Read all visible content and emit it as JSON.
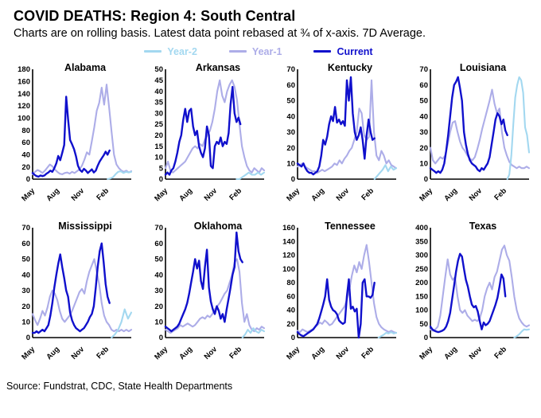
{
  "header": {
    "title": "COVID DEATHS: Region 4: South Central",
    "subtitle": "Charts are on rolling basis. Latest data point rebased at ¾ of x-axis. 7D Average."
  },
  "colors": {
    "year2": "#A3D8F0",
    "year1": "#ADADE8",
    "current": "#1010CC"
  },
  "legend": {
    "items": [
      {
        "label": "Year-2",
        "color": "#A3D8F0"
      },
      {
        "label": "Year-1",
        "color": "#ADADE8"
      },
      {
        "label": "Current",
        "color": "#1010CC"
      }
    ]
  },
  "footer": {
    "source": "Source: Fundstrat, CDC, State Health Departments"
  },
  "chart_data": [
    {
      "type": "line",
      "id": "alabama",
      "title": "Alabama",
      "ylim": [
        0,
        180
      ],
      "ystep": 20,
      "x_tick_labels": [
        "May",
        "Aug",
        "Nov",
        "Feb"
      ],
      "x_tick_pos": [
        0,
        0.25,
        0.5,
        0.75
      ],
      "series": [
        {
          "name": "Year-1",
          "color_key": "year1",
          "x_range": [
            0,
            1
          ],
          "y": [
            8,
            12,
            15,
            13,
            10,
            14,
            19,
            24,
            21,
            16,
            12,
            9,
            8,
            10,
            11,
            9,
            12,
            10,
            13,
            16,
            22,
            32,
            44,
            40,
            62,
            85,
            112,
            125,
            150,
            122,
            155,
            118,
            78,
            40,
            24,
            18,
            14,
            12,
            14,
            11,
            13
          ]
        },
        {
          "name": "Year-2",
          "color_key": "year2",
          "x_range": [
            0.76,
            1
          ],
          "y": [
            0,
            1,
            3,
            8,
            12,
            13,
            10,
            12,
            11,
            12
          ]
        },
        {
          "name": "Current",
          "color_key": "current",
          "x_range": [
            0,
            0.78
          ],
          "y": [
            10,
            7,
            5,
            4,
            6,
            5,
            6,
            9,
            11,
            14,
            12,
            18,
            26,
            38,
            31,
            43,
            56,
            135,
            98,
            64,
            57,
            49,
            37,
            22,
            15,
            12,
            17,
            14,
            10,
            13,
            16,
            11,
            14,
            22,
            29,
            34,
            39,
            45,
            40,
            47
          ]
        }
      ]
    },
    {
      "type": "line",
      "id": "arkansas",
      "title": "Arkansas",
      "ylim": [
        0,
        50
      ],
      "ystep": 5,
      "x_tick_labels": [
        "May",
        "Aug",
        "Nov",
        "Feb"
      ],
      "x_tick_pos": [
        0,
        0.25,
        0.5,
        0.75
      ],
      "series": [
        {
          "name": "Year-1",
          "color_key": "year1",
          "x_range": [
            0,
            1
          ],
          "y": [
            5,
            8,
            4,
            3,
            4,
            5,
            6,
            7,
            8,
            10,
            12,
            14,
            15,
            14,
            16,
            15,
            18,
            20,
            22,
            26,
            32,
            40,
            45,
            38,
            35,
            40,
            43,
            45,
            42,
            36,
            25,
            15,
            10,
            6,
            4,
            3,
            5,
            4,
            3,
            5,
            4
          ]
        },
        {
          "name": "Year-2",
          "color_key": "year2",
          "x_range": [
            0.72,
            1
          ],
          "y": [
            0,
            0,
            1,
            2,
            3,
            2,
            2,
            3,
            2,
            3
          ]
        },
        {
          "name": "Current",
          "color_key": "current",
          "x_range": [
            0,
            0.76
          ],
          "y": [
            2,
            3,
            2,
            4,
            5,
            8,
            12,
            17,
            20,
            27,
            32,
            26,
            31,
            32,
            24,
            20,
            22,
            15,
            12,
            10,
            14,
            24,
            20,
            6,
            5,
            15,
            17,
            16,
            19,
            15,
            17,
            16,
            21,
            34,
            42,
            30,
            26,
            28,
            25
          ]
        }
      ]
    },
    {
      "type": "line",
      "id": "kentucky",
      "title": "Kentucky",
      "ylim": [
        0,
        70
      ],
      "ystep": 10,
      "x_tick_labels": [
        "May",
        "Aug",
        "Nov",
        "Feb"
      ],
      "x_tick_pos": [
        0,
        0.25,
        0.5,
        0.75
      ],
      "series": [
        {
          "name": "Year-1",
          "color_key": "year1",
          "x_range": [
            0,
            1
          ],
          "y": [
            8,
            9,
            10,
            8,
            7,
            6,
            5,
            5,
            4,
            5,
            6,
            5,
            6,
            7,
            8,
            10,
            9,
            12,
            10,
            13,
            15,
            18,
            20,
            25,
            30,
            45,
            42,
            28,
            25,
            27,
            63,
            30,
            15,
            12,
            18,
            15,
            10,
            12,
            9,
            8,
            7
          ]
        },
        {
          "name": "Year-2",
          "color_key": "year2",
          "x_range": [
            0.78,
            1
          ],
          "y": [
            0,
            2,
            4,
            6,
            9,
            5,
            8,
            6,
            7
          ]
        },
        {
          "name": "Current",
          "color_key": "current",
          "x_range": [
            0,
            0.78
          ],
          "y": [
            10,
            9,
            8,
            10,
            7,
            5,
            4,
            4,
            3,
            4,
            5,
            8,
            15,
            25,
            22,
            27,
            35,
            40,
            37,
            46,
            36,
            38,
            35,
            37,
            34,
            63,
            50,
            65,
            42,
            30,
            25,
            28,
            33,
            25,
            13,
            28,
            38,
            30,
            25,
            26
          ]
        }
      ]
    },
    {
      "type": "line",
      "id": "louisiana",
      "title": "Louisiana",
      "ylim": [
        0,
        70
      ],
      "ystep": 10,
      "x_tick_labels": [
        "May",
        "Aug",
        "Nov",
        "Feb"
      ],
      "x_tick_pos": [
        0,
        0.25,
        0.5,
        0.75
      ],
      "series": [
        {
          "name": "Year-1",
          "color_key": "year1",
          "x_range": [
            0,
            1
          ],
          "y": [
            20,
            12,
            10,
            12,
            14,
            13,
            15,
            22,
            30,
            36,
            37,
            30,
            24,
            20,
            18,
            15,
            13,
            12,
            14,
            19,
            25,
            32,
            38,
            44,
            50,
            57,
            48,
            42,
            45,
            30,
            20,
            15,
            11,
            9,
            8,
            7,
            8,
            7,
            7,
            8,
            7
          ]
        },
        {
          "name": "Year-2",
          "color_key": "year2",
          "x_range": [
            0.78,
            1
          ],
          "y": [
            0,
            3,
            15,
            35,
            52,
            60,
            65,
            63,
            55,
            33,
            28,
            17
          ]
        },
        {
          "name": "Current",
          "color_key": "current",
          "x_range": [
            0,
            0.78
          ],
          "y": [
            7,
            6,
            5,
            4,
            5,
            4,
            6,
            10,
            18,
            28,
            40,
            52,
            60,
            62,
            65,
            58,
            50,
            30,
            22,
            16,
            12,
            10,
            9,
            8,
            6,
            5,
            7,
            6,
            8,
            10,
            14,
            22,
            30,
            38,
            42,
            40,
            35,
            38,
            31,
            28
          ]
        }
      ]
    },
    {
      "type": "line",
      "id": "mississippi",
      "title": "Mississippi",
      "ylim": [
        0,
        70
      ],
      "ystep": 10,
      "x_tick_labels": [
        "May",
        "Aug",
        "Nov",
        "Feb"
      ],
      "x_tick_pos": [
        0,
        0.25,
        0.5,
        0.75
      ],
      "series": [
        {
          "name": "Year-1",
          "color_key": "year1",
          "x_range": [
            0,
            1
          ],
          "y": [
            15,
            11,
            8,
            12,
            17,
            14,
            19,
            26,
            30,
            28,
            24,
            17,
            12,
            10,
            12,
            14,
            17,
            21,
            25,
            29,
            31,
            28,
            36,
            42,
            46,
            50,
            42,
            34,
            22,
            14,
            10,
            8,
            5,
            4,
            5,
            4,
            5,
            4,
            5,
            4,
            5
          ]
        },
        {
          "name": "Year-2",
          "color_key": "year2",
          "x_range": [
            0.8,
            1
          ],
          "y": [
            0,
            2,
            5,
            10,
            18,
            12,
            16
          ]
        },
        {
          "name": "Current",
          "color_key": "current",
          "x_range": [
            0,
            0.78
          ],
          "y": [
            3,
            3,
            4,
            3,
            4,
            5,
            4,
            6,
            8,
            14,
            22,
            32,
            40,
            47,
            53,
            45,
            38,
            30,
            26,
            16,
            11,
            8,
            6,
            5,
            4,
            5,
            6,
            8,
            10,
            13,
            15,
            20,
            32,
            45,
            55,
            60,
            48,
            34,
            26,
            22
          ]
        }
      ]
    },
    {
      "type": "line",
      "id": "oklahoma",
      "title": "Oklahoma",
      "ylim": [
        0,
        70
      ],
      "ystep": 10,
      "x_tick_labels": [
        "May",
        "Aug",
        "Nov",
        "Feb"
      ],
      "x_tick_pos": [
        0,
        0.25,
        0.5,
        0.75
      ],
      "series": [
        {
          "name": "Year-1",
          "color_key": "year1",
          "x_range": [
            0,
            1
          ],
          "y": [
            5,
            4,
            3,
            4,
            5,
            6,
            8,
            7,
            8,
            9,
            8,
            7,
            8,
            10,
            12,
            13,
            12,
            14,
            13,
            15,
            18,
            20,
            22,
            25,
            28,
            30,
            35,
            40,
            48,
            50,
            42,
            22,
            10,
            15,
            8,
            5,
            4,
            6,
            5,
            7,
            6
          ]
        },
        {
          "name": "Year-2",
          "color_key": "year2",
          "x_range": [
            0.78,
            1
          ],
          "y": [
            0,
            2,
            5,
            3,
            6,
            4,
            3,
            5,
            4
          ]
        },
        {
          "name": "Current",
          "color_key": "current",
          "x_range": [
            0,
            0.78
          ],
          "y": [
            7,
            6,
            5,
            4,
            5,
            6,
            7,
            9,
            12,
            15,
            18,
            22,
            28,
            35,
            42,
            50,
            44,
            49,
            36,
            31,
            45,
            56,
            32,
            23,
            18,
            15,
            20,
            17,
            12,
            15,
            10,
            18,
            25,
            32,
            40,
            45,
            67,
            55,
            50,
            48
          ]
        }
      ]
    },
    {
      "type": "line",
      "id": "tennessee",
      "title": "Tennessee",
      "ylim": [
        0,
        160
      ],
      "ystep": 20,
      "x_tick_labels": [
        "May",
        "Aug",
        "Nov",
        "Feb"
      ],
      "x_tick_pos": [
        0,
        0.25,
        0.5,
        0.75
      ],
      "series": [
        {
          "name": "Year-1",
          "color_key": "year1",
          "x_range": [
            0,
            1
          ],
          "y": [
            10,
            8,
            12,
            10,
            8,
            10,
            12,
            15,
            18,
            22,
            20,
            25,
            22,
            18,
            20,
            25,
            30,
            35,
            40,
            45,
            55,
            70,
            90,
            105,
            95,
            110,
            100,
            120,
            135,
            110,
            80,
            50,
            30,
            20,
            15,
            12,
            10,
            8,
            10,
            8,
            7
          ]
        },
        {
          "name": "Year-2",
          "color_key": "year2",
          "x_range": [
            0.82,
            1
          ],
          "y": [
            0,
            2,
            4,
            7,
            6,
            8,
            6,
            7
          ]
        },
        {
          "name": "Current",
          "color_key": "current",
          "x_range": [
            0,
            0.78
          ],
          "y": [
            8,
            5,
            3,
            2,
            4,
            6,
            8,
            10,
            12,
            16,
            20,
            28,
            38,
            48,
            60,
            85,
            55,
            45,
            40,
            38,
            34,
            25,
            22,
            20,
            22,
            60,
            85,
            42,
            45,
            38,
            42,
            0,
            20,
            80,
            85,
            60,
            60,
            58,
            62,
            80
          ]
        }
      ]
    },
    {
      "type": "line",
      "id": "texas",
      "title": "Texas",
      "ylim": [
        0,
        400
      ],
      "ystep": 50,
      "x_tick_labels": [
        "May",
        "Aug",
        "Nov",
        "Feb"
      ],
      "x_tick_pos": [
        0,
        0.25,
        0.5,
        0.75
      ],
      "series": [
        {
          "name": "Year-1",
          "color_key": "year1",
          "x_range": [
            0,
            1
          ],
          "y": [
            30,
            25,
            30,
            40,
            80,
            150,
            220,
            285,
            230,
            210,
            220,
            150,
            100,
            90,
            100,
            80,
            70,
            60,
            65,
            60,
            70,
            100,
            150,
            180,
            200,
            175,
            220,
            240,
            280,
            320,
            335,
            300,
            280,
            220,
            150,
            100,
            70,
            55,
            45,
            40,
            45
          ]
        },
        {
          "name": "Year-2",
          "color_key": "year2",
          "x_range": [
            0.85,
            1
          ],
          "y": [
            0,
            5,
            12,
            22,
            30,
            28,
            30
          ]
        },
        {
          "name": "Current",
          "color_key": "current",
          "x_range": [
            0,
            0.76
          ],
          "y": [
            40,
            30,
            25,
            22,
            20,
            22,
            25,
            30,
            40,
            60,
            90,
            140,
            190,
            240,
            280,
            305,
            295,
            250,
            210,
            185,
            150,
            120,
            110,
            115,
            95,
            60,
            30,
            55,
            45,
            50,
            60,
            80,
            100,
            120,
            145,
            185,
            230,
            215,
            150
          ]
        }
      ]
    }
  ]
}
